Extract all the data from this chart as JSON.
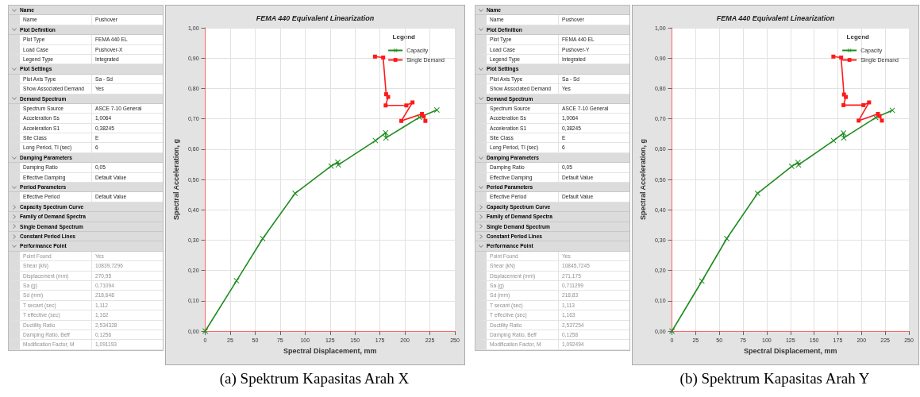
{
  "chart_data": [
    {
      "type": "other",
      "y_categories": [
        "Name",
        "Name",
        "Plot Definition",
        "Plot Type",
        "Load Case",
        "Legend Type",
        "Plot Settings",
        "Plot Axis Type",
        "Show Associated Demand",
        "Demand Spectrum",
        "Spectrum Source",
        "Acceleration Ss",
        "Acceleration S1",
        "Site Class",
        "Long Period, Tl (sec)",
        "Damping Parameters",
        "Damping Ratio",
        "Effective Damping",
        "Period Parameters",
        "Effective Period",
        "Capacity Spectrum Curve",
        "Family of Demand Spectra",
        "Single Demand Spectrum",
        "Constant Period Lines",
        "Performance Point",
        "Point Found",
        "Shear (kN)",
        "Displacement (mm)",
        "Sa (g)",
        "Sd (mm)",
        "T secant (sec)",
        "T effective (sec)",
        "Ductility Ratio",
        "Damping Ratio, Beff",
        "Modification Factor, M"
      ],
      "cell_labels": [
        [
          null
        ],
        [
          "Pushover"
        ],
        [
          null
        ],
        [
          "FEMA 440 EL"
        ],
        [
          "Pushover-X"
        ],
        [
          "Integrated"
        ],
        [
          null
        ],
        [
          "Sa - Sd"
        ],
        [
          "Yes"
        ],
        [
          null
        ],
        [
          "ASCE 7-10 General"
        ],
        [
          "1,0064"
        ],
        [
          "0,38245"
        ],
        [
          "E"
        ],
        [
          "6"
        ],
        [
          null
        ],
        [
          "0,05"
        ],
        [
          "Default Value"
        ],
        [
          null
        ],
        [
          "Default Value"
        ],
        [
          null
        ],
        [
          null
        ],
        [
          null
        ],
        [
          null
        ],
        [
          null
        ],
        [
          "Yes"
        ],
        [
          "10839,7296"
        ],
        [
          "270,95"
        ],
        [
          "0,71094"
        ],
        [
          "218,648"
        ],
        [
          "1,112"
        ],
        [
          "1,162"
        ],
        [
          "2,534328"
        ],
        [
          "0,1256"
        ],
        [
          "1,091193"
        ]
      ]
    },
    {
      "type": "line",
      "title": "FEMA 440 Equivalent Linearization",
      "xlabel": "Spectral Displacement, mm",
      "ylabel": "Spectral Acceleration, g",
      "legend_title": "Legend",
      "legend": "top right",
      "grid": true,
      "annotations": [
        "(a) Spektrum Kapasitas Arah X"
      ],
      "xlim": [
        0,
        250
      ],
      "xticks": [
        0,
        25,
        50,
        75,
        100,
        125,
        150,
        175,
        200,
        225,
        250
      ],
      "ylim": [
        0,
        1
      ],
      "yticks": [
        {
          "value": 0,
          "label": "0,00"
        },
        {
          "value": 0.1,
          "label": "0,10"
        },
        {
          "value": 0.2,
          "label": "0,20"
        },
        {
          "value": 0.3,
          "label": "0,30"
        },
        {
          "value": 0.4,
          "label": "0,40"
        },
        {
          "value": 0.5,
          "label": "0,50"
        },
        {
          "value": 0.6,
          "label": "0,60"
        },
        {
          "value": 0.7,
          "label": "0,70"
        },
        {
          "value": 0.8,
          "label": "0,80"
        },
        {
          "value": 0.9,
          "label": "0,90"
        },
        {
          "value": 1,
          "label": "1,00"
        }
      ],
      "series": [
        {
          "name": "Capacity",
          "color": "#1f8c1f",
          "marker": "cross",
          "x": [
            0,
            31.4,
            57.6,
            90,
            126.1,
            132.8,
            133.3,
            170.5,
            180.7,
            181,
            214.6,
            232
          ],
          "values": [
            0,
            0.166,
            0.305,
            0.454,
            0.544,
            0.557,
            0.548,
            0.628,
            0.654,
            0.637,
            0.705,
            0.729
          ]
        },
        {
          "name": "Single Demand",
          "color": "#ff1a1a",
          "marker": "square",
          "x": [
            170,
            178.2,
            181.2,
            183.2,
            180.7,
            201.4,
            207.6,
            196.4,
            217.1,
            218.8,
            220.5
          ],
          "values": [
            0.905,
            0.902,
            0.781,
            0.772,
            0.744,
            0.744,
            0.754,
            0.693,
            0.716,
            0.708,
            0.693
          ]
        }
      ]
    },
    {
      "type": "other",
      "y_categories": [
        "Name",
        "Name",
        "Plot Definition",
        "Plot Type",
        "Load Case",
        "Legend Type",
        "Plot Settings",
        "Plot Axis Type",
        "Show Associated Demand",
        "Demand Spectrum",
        "Spectrum Source",
        "Acceleration Ss",
        "Acceleration S1",
        "Site Class",
        "Long Period, Tl (sec)",
        "Damping Parameters",
        "Damping Ratio",
        "Effective Damping",
        "Period Parameters",
        "Effective Period",
        "Capacity Spectrum Curve",
        "Family of Demand Spectra",
        "Single Demand Spectrum",
        "Constant Period Lines",
        "Performance Point",
        "Point Found",
        "Shear (kN)",
        "Displacement (mm)",
        "Sa (g)",
        "Sd (mm)",
        "T secant (sec)",
        "T effective (sec)",
        "Ductility Ratio",
        "Damping Ratio, Beff",
        "Modification Factor, M"
      ],
      "cell_labels": [
        [
          null
        ],
        [
          "Pushover"
        ],
        [
          null
        ],
        [
          "FEMA 440 EL"
        ],
        [
          "Pushover-Y"
        ],
        [
          "Integrated"
        ],
        [
          null
        ],
        [
          "Sa - Sd"
        ],
        [
          "Yes"
        ],
        [
          null
        ],
        [
          "ASCE 7-10 General"
        ],
        [
          "1,0064"
        ],
        [
          "0,38245"
        ],
        [
          "E"
        ],
        [
          "6"
        ],
        [
          null
        ],
        [
          "0,05"
        ],
        [
          "Default Value"
        ],
        [
          null
        ],
        [
          "Default Value"
        ],
        [
          null
        ],
        [
          null
        ],
        [
          null
        ],
        [
          null
        ],
        [
          null
        ],
        [
          "Yes"
        ],
        [
          "10845,7245"
        ],
        [
          "271,175"
        ],
        [
          "0,711299"
        ],
        [
          "218,83"
        ],
        [
          "1,113"
        ],
        [
          "1,163"
        ],
        [
          "2,537254"
        ],
        [
          "0,1258"
        ],
        [
          "1,092494"
        ]
      ]
    },
    {
      "type": "line",
      "title": "FEMA 440 Equivalent Linearization",
      "xlabel": "Spectral Displacement, mm",
      "ylabel": "Spectral Acceleration, g",
      "legend_title": "Legend",
      "legend": "top right",
      "grid": true,
      "annotations": [
        "(b) Spektrum Kapasitas Arah Y"
      ],
      "xlim": [
        0,
        250
      ],
      "xticks": [
        0,
        25,
        50,
        75,
        100,
        125,
        150,
        175,
        200,
        225,
        250
      ],
      "ylim": [
        0,
        1
      ],
      "yticks": [
        {
          "value": 0,
          "label": "0,00"
        },
        {
          "value": 0.1,
          "label": "0,10"
        },
        {
          "value": 0.2,
          "label": "0,20"
        },
        {
          "value": 0.3,
          "label": "0,30"
        },
        {
          "value": 0.4,
          "label": "0,40"
        },
        {
          "value": 0.5,
          "label": "0,50"
        },
        {
          "value": 0.6,
          "label": "0,60"
        },
        {
          "value": 0.7,
          "label": "0,70"
        },
        {
          "value": 0.8,
          "label": "0,80"
        },
        {
          "value": 0.9,
          "label": "0,90"
        },
        {
          "value": 1,
          "label": "1,00"
        }
      ],
      "series": [
        {
          "name": "Capacity",
          "color": "#1f8c1f",
          "marker": "cross",
          "x": [
            0,
            31.6,
            57.8,
            90.3,
            126.3,
            133,
            133.5,
            170.5,
            181,
            181.3,
            215,
            232.5
          ],
          "values": [
            0,
            0.165,
            0.305,
            0.454,
            0.543,
            0.556,
            0.548,
            0.628,
            0.653,
            0.637,
            0.704,
            0.728
          ]
        },
        {
          "name": "Single Demand",
          "color": "#ff1a1a",
          "marker": "square",
          "x": [
            170.3,
            178.5,
            181.5,
            183.5,
            181,
            202,
            208,
            197,
            217.3,
            219,
            221.5
          ],
          "values": [
            0.905,
            0.902,
            0.78,
            0.772,
            0.745,
            0.745,
            0.754,
            0.694,
            0.716,
            0.709,
            0.694
          ]
        }
      ]
    }
  ]
}
